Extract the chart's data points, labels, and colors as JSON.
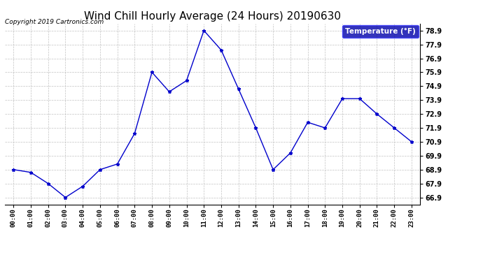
{
  "title": "Wind Chill Hourly Average (24 Hours) 20190630",
  "copyright": "Copyright 2019 Cartronics.com",
  "legend_label": "Temperature (°F)",
  "hours": [
    "00:00",
    "01:00",
    "02:00",
    "03:00",
    "04:00",
    "05:00",
    "06:00",
    "07:00",
    "08:00",
    "09:00",
    "10:00",
    "11:00",
    "12:00",
    "13:00",
    "14:00",
    "15:00",
    "16:00",
    "17:00",
    "18:00",
    "19:00",
    "20:00",
    "21:00",
    "22:00",
    "23:00"
  ],
  "values": [
    68.9,
    68.7,
    67.9,
    66.9,
    67.7,
    68.9,
    69.3,
    71.5,
    75.9,
    74.5,
    75.3,
    78.9,
    77.5,
    74.7,
    71.9,
    68.9,
    70.1,
    72.3,
    71.9,
    74.0,
    74.0,
    72.9,
    71.9,
    70.9
  ],
  "ylim": [
    66.4,
    79.4
  ],
  "yticks": [
    66.9,
    67.9,
    68.9,
    69.9,
    70.9,
    71.9,
    72.9,
    73.9,
    74.9,
    75.9,
    76.9,
    77.9,
    78.9
  ],
  "line_color": "#0000cc",
  "marker": "*",
  "background_color": "#ffffff",
  "grid_color": "#bbbbbb",
  "title_fontsize": 11,
  "tick_fontsize": 6.5,
  "legend_bg": "#0000aa",
  "legend_text_color": "#ffffff",
  "legend_fontsize": 7.5,
  "copyright_fontsize": 6.5
}
